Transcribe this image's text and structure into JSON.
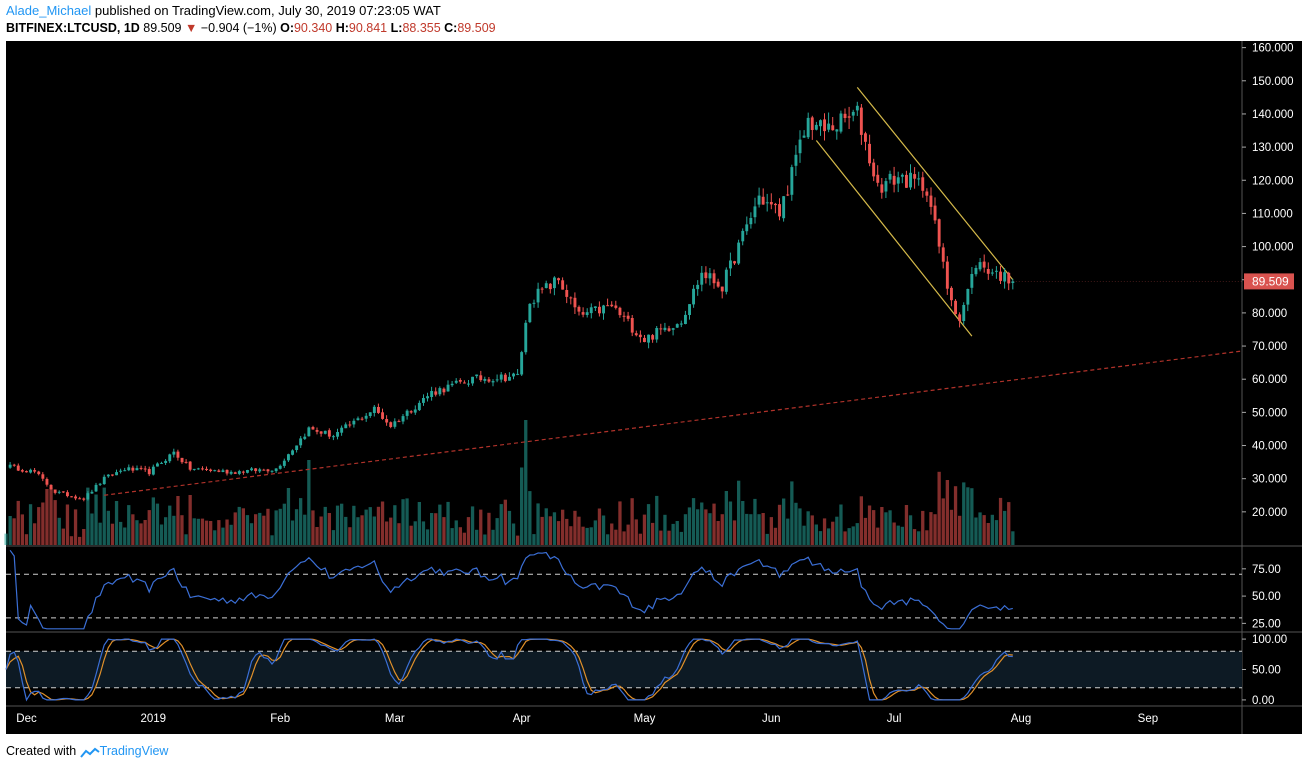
{
  "header": {
    "author": "Alade_Michael",
    "published_text": " published on TradingView.com, July 30, 2019 07:23:05 WAT"
  },
  "ohlc_line": {
    "symbol": "BITFINEX:LTCUSD, 1D",
    "last": "89.509",
    "arrow": "▼",
    "change": "−0.904 (−1%)",
    "o_label": "O:",
    "o": "90.340",
    "h_label": "H:",
    "h": "90.841",
    "l_label": "L:",
    "l": "88.355",
    "c_label": "C:",
    "c": "89.509"
  },
  "footer": {
    "created_with": "Created with",
    "brand": "TradingView"
  },
  "colors": {
    "background": "#000000",
    "up": "#26a69a",
    "down": "#ef5350",
    "channel": "#d4b94a",
    "trendline": "#b0322a",
    "rsi_line": "#3b6fd6",
    "stoch_k": "#3b6fd6",
    "stoch_d": "#e0902a",
    "price_tag": "#d9534f"
  },
  "chart_data": [
    {
      "type": "candlestick",
      "symbol": "BITFINEX:LTCUSD",
      "interval": "1D",
      "ylim": [
        10,
        162
      ],
      "yticks": [
        20,
        30,
        40,
        50,
        60,
        70,
        80,
        90,
        100,
        110,
        120,
        130,
        140,
        150,
        160
      ],
      "ytick_labels": [
        "20.000",
        "30.000",
        "40.000",
        "50.000",
        "60.000",
        "70.000",
        "80.000",
        "90.000",
        "100.000",
        "110.000",
        "120.000",
        "130.000",
        "140.000",
        "150.000",
        "160.000"
      ],
      "x_axis": {
        "range": [
          "2018-11-26",
          "2019-09-24"
        ],
        "ticks": [
          "2018-12-01",
          "2019-01-01",
          "2019-02-01",
          "2019-03-01",
          "2019-04-01",
          "2019-05-01",
          "2019-06-01",
          "2019-07-01",
          "2019-08-01",
          "2019-09-01"
        ],
        "tick_labels": [
          "Dec",
          "2019",
          "Feb",
          "Mar",
          "Apr",
          "May",
          "Jun",
          "Jul",
          "Aug",
          "Sep"
        ]
      },
      "last_price": 89.509,
      "last_price_label": "89.509",
      "price_keypoints": [
        {
          "date": "2018-11-26",
          "close": 34
        },
        {
          "date": "2018-12-03",
          "close": 32
        },
        {
          "date": "2018-12-08",
          "close": 26
        },
        {
          "date": "2018-12-15",
          "close": 24
        },
        {
          "date": "2018-12-20",
          "close": 30
        },
        {
          "date": "2018-12-25",
          "close": 33
        },
        {
          "date": "2018-12-31",
          "close": 32
        },
        {
          "date": "2019-01-06",
          "close": 38
        },
        {
          "date": "2019-01-10",
          "close": 33
        },
        {
          "date": "2019-01-20",
          "close": 32
        },
        {
          "date": "2019-01-31",
          "close": 33
        },
        {
          "date": "2019-02-08",
          "close": 45
        },
        {
          "date": "2019-02-14",
          "close": 43
        },
        {
          "date": "2019-02-24",
          "close": 51
        },
        {
          "date": "2019-02-28",
          "close": 46
        },
        {
          "date": "2019-03-10",
          "close": 56
        },
        {
          "date": "2019-03-20",
          "close": 60
        },
        {
          "date": "2019-03-31",
          "close": 61
        },
        {
          "date": "2019-04-03",
          "close": 84
        },
        {
          "date": "2019-04-10",
          "close": 90
        },
        {
          "date": "2019-04-15",
          "close": 79
        },
        {
          "date": "2019-04-23",
          "close": 82
        },
        {
          "date": "2019-05-01",
          "close": 72
        },
        {
          "date": "2019-05-10",
          "close": 78
        },
        {
          "date": "2019-05-15",
          "close": 92
        },
        {
          "date": "2019-05-20",
          "close": 88
        },
        {
          "date": "2019-05-29",
          "close": 115
        },
        {
          "date": "2019-06-03",
          "close": 110
        },
        {
          "date": "2019-06-10",
          "close": 138
        },
        {
          "date": "2019-06-14",
          "close": 135
        },
        {
          "date": "2019-06-22",
          "close": 140
        },
        {
          "date": "2019-06-27",
          "close": 118
        },
        {
          "date": "2019-07-02",
          "close": 121
        },
        {
          "date": "2019-07-09",
          "close": 118
        },
        {
          "date": "2019-07-14",
          "close": 88
        },
        {
          "date": "2019-07-17",
          "close": 78
        },
        {
          "date": "2019-07-21",
          "close": 95
        },
        {
          "date": "2019-07-30",
          "close": 89.5
        }
      ],
      "channel_upper": [
        {
          "date": "2019-06-22",
          "value": 148
        },
        {
          "date": "2019-07-30",
          "value": 90
        }
      ],
      "channel_lower": [
        {
          "date": "2019-06-12",
          "value": 132
        },
        {
          "date": "2019-07-20",
          "value": 73
        }
      ],
      "trendline": [
        {
          "date": "2018-12-20",
          "value": 25
        },
        {
          "date": "2019-09-24",
          "value": 68.5
        }
      ],
      "volume": "bars shown at bottom of price pane (relative, no scale)"
    },
    {
      "type": "line",
      "indicator": "RSI",
      "ylim": [
        18,
        95
      ],
      "yticks": [
        25,
        50,
        75
      ],
      "ytick_labels": [
        "25.00",
        "50.00",
        "75.00"
      ],
      "bands": [
        30,
        70
      ]
    },
    {
      "type": "line",
      "indicator": "Stochastic",
      "ylim": [
        -10,
        110
      ],
      "yticks": [
        0,
        50,
        100
      ],
      "ytick_labels": [
        "0.00",
        "50.00",
        "100.00"
      ],
      "bands": [
        20,
        80
      ],
      "series": [
        {
          "role": "k"
        },
        {
          "role": "d"
        }
      ]
    }
  ]
}
